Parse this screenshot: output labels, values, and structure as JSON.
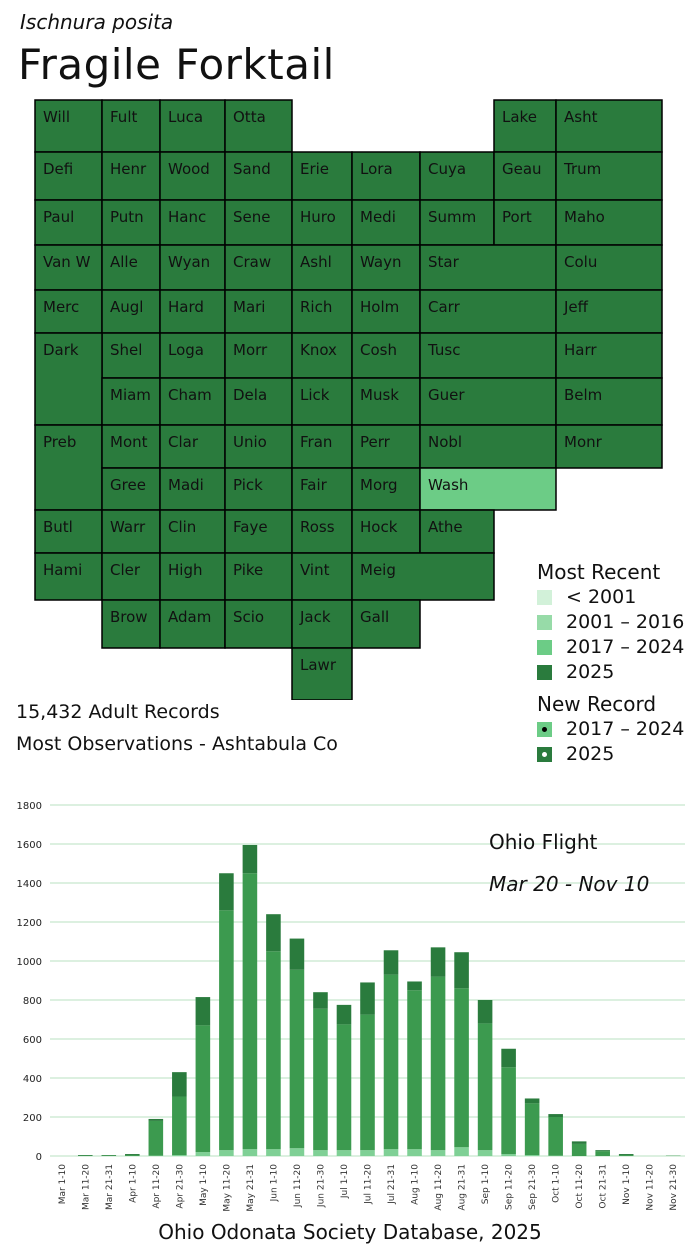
{
  "species": "Ischnura posita",
  "title": "Fragile Forktail",
  "colors": {
    "map_2025": "#2a7b3d",
    "map_2017_2024": "#6ccc86",
    "map_2001_2016": "#97dba8",
    "map_pre_2001": "#d2f1d9",
    "bar_dark": "#2a7b3d",
    "bar_mid": "#3c9a4f",
    "bar_light": "#7fd095",
    "grid": "#b9e2c2",
    "map_border": "#000000"
  },
  "counties": [
    {
      "name": "Will",
      "status": "2025"
    },
    {
      "name": "Fult",
      "status": "2025"
    },
    {
      "name": "Luca",
      "status": "2025"
    },
    {
      "name": "Otta",
      "status": "2025"
    },
    {
      "name": "Defi",
      "status": "2025"
    },
    {
      "name": "Henr",
      "status": "2025"
    },
    {
      "name": "Wood",
      "status": "2025"
    },
    {
      "name": "Sand",
      "status": "2025"
    },
    {
      "name": "Erie",
      "status": "2025"
    },
    {
      "name": "Lora",
      "status": "2025"
    },
    {
      "name": "Cuya",
      "status": "2025"
    },
    {
      "name": "Lake",
      "status": "2025"
    },
    {
      "name": "Asht",
      "status": "2025"
    },
    {
      "name": "Geau",
      "status": "2025"
    },
    {
      "name": "Trum",
      "status": "2025"
    },
    {
      "name": "Paul",
      "status": "2025"
    },
    {
      "name": "Putn",
      "status": "2025"
    },
    {
      "name": "Hanc",
      "status": "2025"
    },
    {
      "name": "Sene",
      "status": "2025"
    },
    {
      "name": "Huro",
      "status": "2025"
    },
    {
      "name": "Medi",
      "status": "2025"
    },
    {
      "name": "Summ",
      "status": "2025"
    },
    {
      "name": "Port",
      "status": "2025"
    },
    {
      "name": "Maho",
      "status": "2025"
    },
    {
      "name": "Van W",
      "status": "2025"
    },
    {
      "name": "Alle",
      "status": "2025"
    },
    {
      "name": "Wyan",
      "status": "2025"
    },
    {
      "name": "Craw",
      "status": "2025"
    },
    {
      "name": "Rich",
      "status": "2025"
    },
    {
      "name": "Ashl",
      "status": "2025"
    },
    {
      "name": "Wayn",
      "status": "2025"
    },
    {
      "name": "Star",
      "status": "2025"
    },
    {
      "name": "Colu",
      "status": "2025"
    },
    {
      "name": "Merc",
      "status": "2025"
    },
    {
      "name": "Augl",
      "status": "2025"
    },
    {
      "name": "Hard",
      "status": "2025"
    },
    {
      "name": "Mari",
      "status": "2025"
    },
    {
      "name": "Morr",
      "status": "2025"
    },
    {
      "name": "Holm",
      "status": "2025"
    },
    {
      "name": "Carr",
      "status": "2025"
    },
    {
      "name": "Jeff",
      "status": "2025"
    },
    {
      "name": "Tusc",
      "status": "2025"
    },
    {
      "name": "Shel",
      "status": "2025"
    },
    {
      "name": "Loga",
      "status": "2025"
    },
    {
      "name": "Dela",
      "status": "2025"
    },
    {
      "name": "Knox",
      "status": "2025"
    },
    {
      "name": "Cosh",
      "status": "2025"
    },
    {
      "name": "Harr",
      "status": "2025"
    },
    {
      "name": "Dark",
      "status": "2025"
    },
    {
      "name": "Miam",
      "status": "2025"
    },
    {
      "name": "Cham",
      "status": "2025"
    },
    {
      "name": "Unio",
      "status": "2025"
    },
    {
      "name": "Lick",
      "status": "2025"
    },
    {
      "name": "Musk",
      "status": "2025"
    },
    {
      "name": "Guer",
      "status": "2025"
    },
    {
      "name": "Belm",
      "status": "2025"
    },
    {
      "name": "Clar",
      "status": "2025"
    },
    {
      "name": "Fran",
      "status": "2025"
    },
    {
      "name": "Madi",
      "status": "2025"
    },
    {
      "name": "Fair",
      "status": "2025"
    },
    {
      "name": "Perr",
      "status": "2025"
    },
    {
      "name": "Nobl",
      "status": "2025"
    },
    {
      "name": "Monr",
      "status": "2025"
    },
    {
      "name": "Preb",
      "status": "2025"
    },
    {
      "name": "Mont",
      "status": "2025"
    },
    {
      "name": "Gree",
      "status": "2025"
    },
    {
      "name": "Faye",
      "status": "2025"
    },
    {
      "name": "Pick",
      "status": "2025"
    },
    {
      "name": "Morg",
      "status": "2025"
    },
    {
      "name": "Wash",
      "status": "2017 – 2024"
    },
    {
      "name": "Butl",
      "status": "2025"
    },
    {
      "name": "Warr",
      "status": "2025"
    },
    {
      "name": "Clin",
      "status": "2025"
    },
    {
      "name": "Ross",
      "status": "2025"
    },
    {
      "name": "Hock",
      "status": "2025"
    },
    {
      "name": "Athe",
      "status": "2025"
    },
    {
      "name": "Hami",
      "status": "2025"
    },
    {
      "name": "Cler",
      "status": "2025"
    },
    {
      "name": "High",
      "status": "2025"
    },
    {
      "name": "Vint",
      "status": "2025"
    },
    {
      "name": "Meig",
      "status": "2025"
    },
    {
      "name": "Brow",
      "status": "2025"
    },
    {
      "name": "Adam",
      "status": "2025"
    },
    {
      "name": "Pike",
      "status": "2025"
    },
    {
      "name": "Jack",
      "status": "2025"
    },
    {
      "name": "Gall",
      "status": "2025"
    },
    {
      "name": "Scio",
      "status": "2025"
    },
    {
      "name": "Lawr",
      "status": "2025"
    }
  ],
  "legend": {
    "most_recent_title": "Most Recent",
    "most_recent_items": [
      {
        "label": "< 2001",
        "color": "#d2f1d9"
      },
      {
        "label": "2001 – 2016",
        "color": "#97dba8"
      },
      {
        "label": "2017 – 2024",
        "color": "#6ccc86"
      },
      {
        "label": "2025",
        "color": "#2a7b3d"
      }
    ],
    "new_record_title": "New Record",
    "new_record_items": [
      {
        "label": "2017 – 2024",
        "color": "#6ccc86"
      },
      {
        "label": "2025",
        "color": "#2a7b3d"
      }
    ]
  },
  "stats": {
    "records": "15,432 Adult Records",
    "most_observations": "Most Observations - Ashtabula Co"
  },
  "chart_annotation": {
    "line1": "Ohio Flight",
    "line2": "Mar 20 - Nov 10"
  },
  "footer": "Ohio Odonata Society Database, 2025",
  "chart_data": {
    "type": "bar",
    "stacked": true,
    "title": "",
    "xlabel": "",
    "ylabel": "",
    "ylim": [
      0,
      1800
    ],
    "yticks": [
      0,
      200,
      400,
      600,
      800,
      1000,
      1200,
      1400,
      1600,
      1800
    ],
    "grid": true,
    "categories": [
      "Mar 1-10",
      "Mar 11-20",
      "Mar 21-31",
      "Apr 1-10",
      "Apr 11-20",
      "Apr 21-30",
      "May 1-10",
      "May 11-20",
      "May 21-31",
      "Jun 1-10",
      "Jun 11-20",
      "Jun 21-30",
      "Jul 1-10",
      "Jul 11-20",
      "Jul 21-31",
      "Aug 1-10",
      "Aug 11-20",
      "Aug 21-31",
      "Sep 1-10",
      "Sep 11-20",
      "Sep 21-30",
      "Oct 1-10",
      "Oct 11-20",
      "Oct 21-31",
      "Nov 1-10",
      "Nov 11-20",
      "Nov 21-30"
    ],
    "series": [
      {
        "color": "#7fd095",
        "values": [
          0,
          0,
          0,
          0,
          2,
          5,
          20,
          30,
          35,
          35,
          40,
          30,
          30,
          30,
          35,
          35,
          30,
          45,
          30,
          10,
          5,
          2,
          0,
          0,
          0,
          0,
          0
        ]
      },
      {
        "color": "#3c9a4f",
        "values": [
          0,
          2,
          3,
          5,
          178,
          300,
          650,
          1230,
          1415,
          1015,
          915,
          725,
          645,
          695,
          895,
          815,
          890,
          815,
          650,
          445,
          265,
          198,
          62,
          25,
          5,
          0,
          2
        ]
      },
      {
        "color": "#2a7b3d",
        "values": [
          0,
          3,
          2,
          5,
          10,
          125,
          145,
          190,
          145,
          190,
          160,
          85,
          100,
          165,
          125,
          45,
          150,
          185,
          120,
          95,
          25,
          15,
          13,
          5,
          5,
          0,
          0
        ]
      }
    ]
  }
}
